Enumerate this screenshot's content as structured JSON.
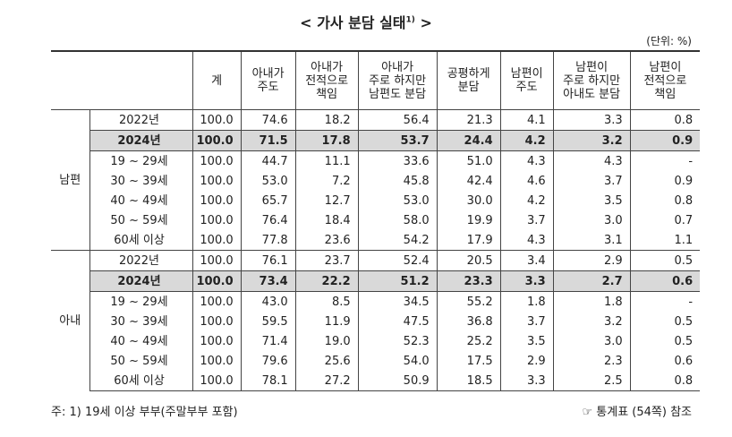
{
  "title": {
    "main": "< 가사 분담 실태",
    "sup": "1)",
    "close": ">"
  },
  "unit": "(단위: %)",
  "table": {
    "columns": [
      [
        "계"
      ],
      [
        "아내가",
        "주도"
      ],
      [
        "아내가",
        "전적으로",
        "책임"
      ],
      [
        "아내가",
        "주로 하지만",
        "남편도 분담"
      ],
      [
        "공평하게",
        "분담"
      ],
      [
        "남편이",
        "주도"
      ],
      [
        "남편이",
        "주로 하지만",
        "아내도 분담"
      ],
      [
        "남편이",
        "전적으로",
        "책임"
      ]
    ],
    "groups": [
      {
        "name": "남편",
        "rows": [
          {
            "label": "2022년",
            "highlight": false,
            "values": [
              "100.0",
              "74.6",
              "18.2",
              "56.4",
              "21.3",
              "4.1",
              "3.3",
              "0.8"
            ]
          },
          {
            "label": "2024년",
            "highlight": true,
            "values": [
              "100.0",
              "71.5",
              "17.8",
              "53.7",
              "24.4",
              "4.2",
              "3.2",
              "0.9"
            ]
          },
          {
            "label": "19 ~ 29세",
            "highlight": false,
            "values": [
              "100.0",
              "44.7",
              "11.1",
              "33.6",
              "51.0",
              "4.3",
              "4.3",
              "-"
            ]
          },
          {
            "label": "30 ~ 39세",
            "highlight": false,
            "values": [
              "100.0",
              "53.0",
              "7.2",
              "45.8",
              "42.4",
              "4.6",
              "3.7",
              "0.9"
            ]
          },
          {
            "label": "40 ~ 49세",
            "highlight": false,
            "values": [
              "100.0",
              "65.7",
              "12.7",
              "53.0",
              "30.0",
              "4.2",
              "3.5",
              "0.8"
            ]
          },
          {
            "label": "50 ~ 59세",
            "highlight": false,
            "values": [
              "100.0",
              "76.4",
              "18.4",
              "58.0",
              "19.9",
              "3.7",
              "3.0",
              "0.7"
            ]
          },
          {
            "label": "60세 이상",
            "highlight": false,
            "values": [
              "100.0",
              "77.8",
              "23.6",
              "54.2",
              "17.9",
              "4.3",
              "3.1",
              "1.1"
            ]
          }
        ]
      },
      {
        "name": "아내",
        "rows": [
          {
            "label": "2022년",
            "highlight": false,
            "values": [
              "100.0",
              "76.1",
              "23.7",
              "52.4",
              "20.5",
              "3.4",
              "2.9",
              "0.5"
            ]
          },
          {
            "label": "2024년",
            "highlight": true,
            "values": [
              "100.0",
              "73.4",
              "22.2",
              "51.2",
              "23.3",
              "3.3",
              "2.7",
              "0.6"
            ]
          },
          {
            "label": "19 ~ 29세",
            "highlight": false,
            "values": [
              "100.0",
              "43.0",
              "8.5",
              "34.5",
              "55.2",
              "1.8",
              "1.8",
              "-"
            ]
          },
          {
            "label": "30 ~ 39세",
            "highlight": false,
            "values": [
              "100.0",
              "59.5",
              "11.9",
              "47.5",
              "36.8",
              "3.7",
              "3.2",
              "0.5"
            ]
          },
          {
            "label": "40 ~ 49세",
            "highlight": false,
            "values": [
              "100.0",
              "71.4",
              "19.0",
              "52.3",
              "25.2",
              "3.5",
              "3.0",
              "0.5"
            ]
          },
          {
            "label": "50 ~ 59세",
            "highlight": false,
            "values": [
              "100.0",
              "79.6",
              "25.6",
              "54.0",
              "17.5",
              "2.9",
              "2.3",
              "0.6"
            ]
          },
          {
            "label": "60세 이상",
            "highlight": false,
            "values": [
              "100.0",
              "78.1",
              "27.2",
              "50.9",
              "18.5",
              "3.3",
              "2.5",
              "0.8"
            ]
          }
        ]
      }
    ]
  },
  "footnote": {
    "left": "주: 1) 19세 이상 부부(주말부부 포함)",
    "right": "☞ 통계표 (54쪽) 참조"
  }
}
